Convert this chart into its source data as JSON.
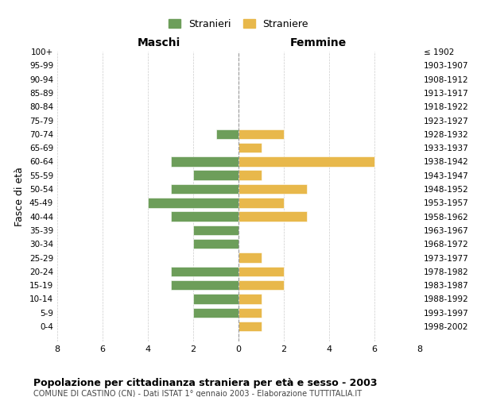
{
  "age_groups": [
    "100+",
    "95-99",
    "90-94",
    "85-89",
    "80-84",
    "75-79",
    "70-74",
    "65-69",
    "60-64",
    "55-59",
    "50-54",
    "45-49",
    "40-44",
    "35-39",
    "30-34",
    "25-29",
    "20-24",
    "15-19",
    "10-14",
    "5-9",
    "0-4"
  ],
  "birth_years": [
    "≤ 1902",
    "1903-1907",
    "1908-1912",
    "1913-1917",
    "1918-1922",
    "1923-1927",
    "1928-1932",
    "1933-1937",
    "1938-1942",
    "1943-1947",
    "1948-1952",
    "1953-1957",
    "1958-1962",
    "1963-1967",
    "1968-1972",
    "1973-1977",
    "1978-1982",
    "1983-1987",
    "1988-1992",
    "1993-1997",
    "1998-2002"
  ],
  "maschi": [
    0,
    0,
    0,
    0,
    0,
    0,
    1,
    0,
    3,
    2,
    3,
    4,
    3,
    2,
    2,
    0,
    3,
    3,
    2,
    2,
    0
  ],
  "femmine": [
    0,
    0,
    0,
    0,
    0,
    0,
    2,
    1,
    6,
    1,
    3,
    2,
    3,
    0,
    0,
    1,
    2,
    2,
    1,
    1,
    1
  ],
  "color_maschi": "#6d9e5a",
  "color_femmine": "#e8b84b",
  "title_main": "Popolazione per cittadinanza straniera per età e sesso - 2003",
  "title_sub": "COMUNE DI CASTINO (CN) - Dati ISTAT 1° gennaio 2003 - Elaborazione TUTTITALIA.IT",
  "legend_maschi": "Stranieri",
  "legend_femmine": "Straniere",
  "xlabel_left": "Maschi",
  "xlabel_right": "Femmine",
  "ylabel_left": "Fasce di età",
  "xlim": 8,
  "background_color": "#ffffff",
  "grid_color": "#cccccc"
}
